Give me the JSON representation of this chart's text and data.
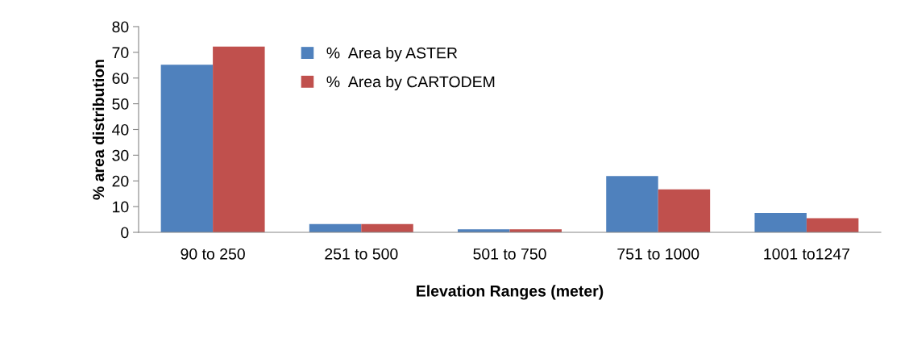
{
  "chart_data": {
    "type": "bar",
    "xlabel": "Elevation Ranges (meter)",
    "ylabel": "% area distribution",
    "categories": [
      "90 to 250",
      "251 to 500",
      "501 to 750",
      "751 to 1000",
      "1001 to1247"
    ],
    "series": [
      {
        "name": "%  Area by ASTER",
        "color": "#4f81bd",
        "values": [
          65.2,
          3.2,
          1.2,
          21.9,
          7.5
        ]
      },
      {
        "name": "%  Area by CARTODEM",
        "color": "#c0504d",
        "values": [
          72.2,
          3.2,
          1.2,
          16.7,
          5.5
        ]
      }
    ],
    "ylim": [
      0,
      80
    ],
    "yticks": [
      0,
      10,
      20,
      30,
      40,
      50,
      60,
      70,
      80
    ],
    "grid": false,
    "legend": "top"
  }
}
